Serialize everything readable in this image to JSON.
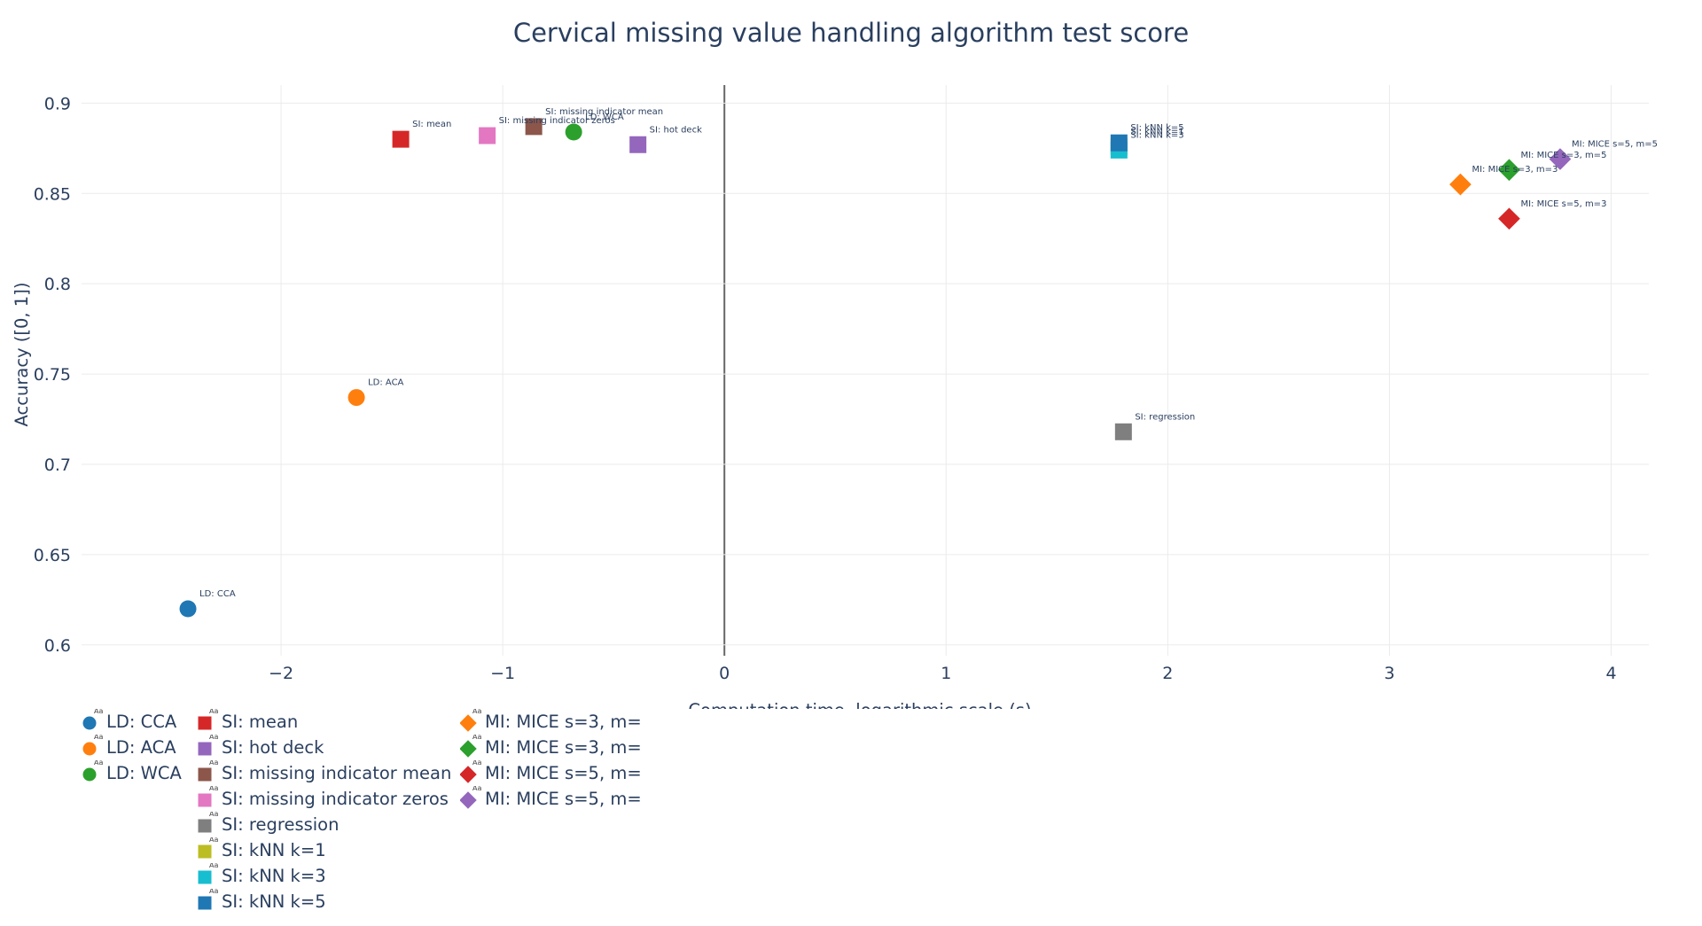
{
  "chart_data": {
    "type": "scatter",
    "title": "Cervical missing value handling algorithm test score",
    "xlabel": "Computation time, logarithmic scale (s)",
    "ylabel": "Accuracy ([0, 1])",
    "xlim": [
      -2.9,
      4.17
    ],
    "ylim": [
      0.594,
      0.91
    ],
    "x_ticks": [
      -2,
      -1,
      0,
      1,
      2,
      3,
      4
    ],
    "x_tick_labels": [
      "−2",
      "−1",
      "0",
      "1",
      "2",
      "3",
      "4"
    ],
    "y_ticks": [
      0.6,
      0.65,
      0.7,
      0.75,
      0.8,
      0.85,
      0.9
    ],
    "y_tick_labels": [
      "0.6",
      "0.65",
      "0.7",
      "0.75",
      "0.8",
      "0.85",
      "0.9"
    ],
    "grid": true,
    "zero_line_x": true,
    "legend_position": "bottom-left",
    "series": [
      {
        "name": "LD: CCA",
        "label": "LD: CCA",
        "marker": "circle",
        "color": "#1f77b4",
        "x": -2.42,
        "y": 0.62
      },
      {
        "name": "LD: ACA",
        "label": "LD: ACA",
        "marker": "circle",
        "color": "#ff7f0e",
        "x": -1.66,
        "y": 0.737
      },
      {
        "name": "LD: WCA",
        "label": "LD: WCA",
        "marker": "circle",
        "color": "#2ca02c",
        "x": -0.68,
        "y": 0.884
      },
      {
        "name": "SI: mean",
        "label": "SI: mean",
        "marker": "square",
        "color": "#d62728",
        "x": -1.46,
        "y": 0.88
      },
      {
        "name": "SI: hot deck",
        "label": "SI: hot deck",
        "marker": "square",
        "color": "#9467bd",
        "x": -0.39,
        "y": 0.877
      },
      {
        "name": "SI: missing indicator mean",
        "label": "SI: missing indicator mean",
        "marker": "square",
        "color": "#8c564b",
        "x": -0.86,
        "y": 0.887
      },
      {
        "name": "SI: missing indicator zeros",
        "label": "SI: missing indicator zeros",
        "marker": "square",
        "color": "#e377c2",
        "x": -1.07,
        "y": 0.882
      },
      {
        "name": "SI: regression",
        "label": "SI: regression",
        "marker": "square",
        "color": "#7f7f7f",
        "x": 1.8,
        "y": 0.718
      },
      {
        "name": "SI: kNN k=1",
        "label": "SI: kNN k=1",
        "marker": "square",
        "color": "#bcbd22",
        "x": 1.78,
        "y": 0.876
      },
      {
        "name": "SI: kNN k=3",
        "label": "SI: kNN k=3",
        "marker": "square",
        "color": "#17becf",
        "x": 1.78,
        "y": 0.874
      },
      {
        "name": "SI: kNN k=5",
        "label": "SI: kNN k=5",
        "marker": "square",
        "color": "#1f77b4",
        "x": 1.78,
        "y": 0.878
      },
      {
        "name": "MI: MICE s=3, m=",
        "label": "MI: MICE s=3, m=3",
        "marker": "diamond",
        "color": "#ff7f0e",
        "x": 3.32,
        "y": 0.855
      },
      {
        "name": "MI: MICE s=3, m=",
        "label": "MI: MICE s=3, m=5",
        "marker": "diamond",
        "color": "#2ca02c",
        "x": 3.54,
        "y": 0.863
      },
      {
        "name": "MI: MICE s=5, m=",
        "label": "MI: MICE s=5, m=3",
        "marker": "diamond",
        "color": "#d62728",
        "x": 3.54,
        "y": 0.836
      },
      {
        "name": "MI: MICE s=5, m=",
        "label": "MI: MICE s=5, m=5",
        "marker": "diamond",
        "color": "#9467bd",
        "x": 3.77,
        "y": 0.869
      }
    ]
  }
}
